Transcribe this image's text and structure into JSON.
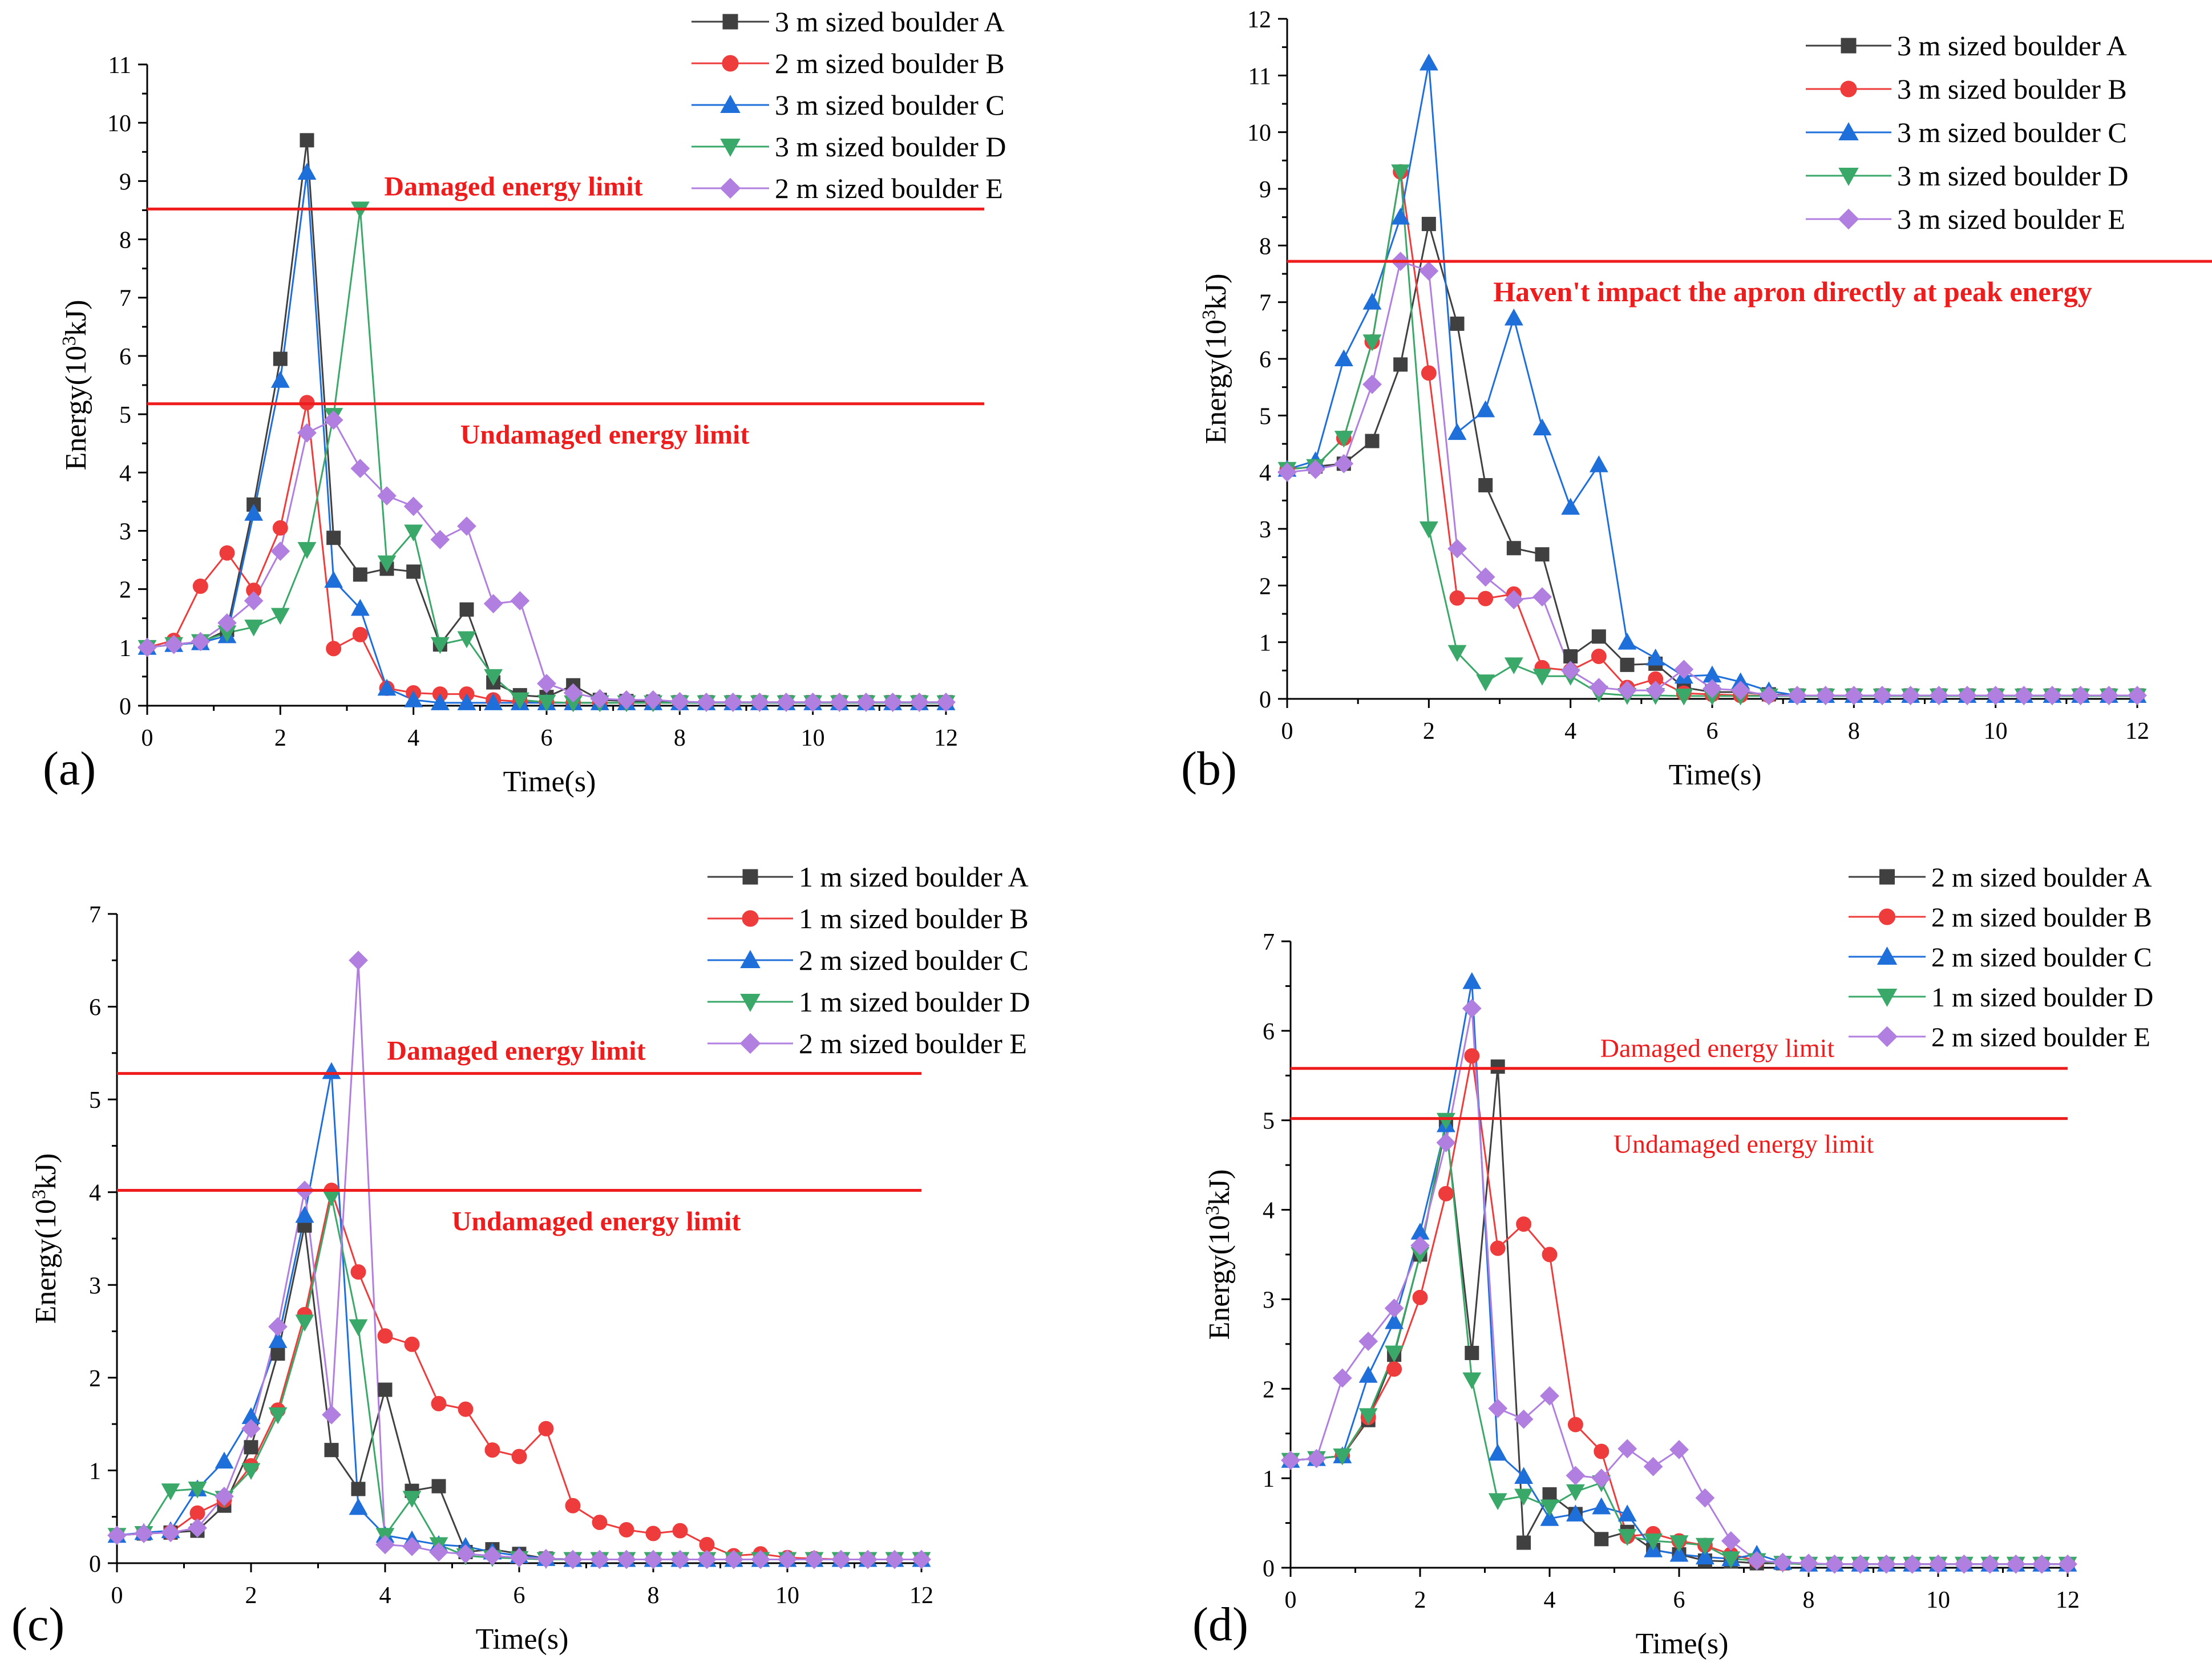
{
  "colors": {
    "A": "#404040",
    "B": "#ee3b3b",
    "C": "#1f6fdb",
    "D": "#3aa868",
    "E": "#b07fe0",
    "limit": "#ee1c1c",
    "axis": "#000000"
  },
  "chart_data": [
    {
      "id": "a",
      "type": "line",
      "panel_label": "(a)",
      "xlabel": "Time(s)",
      "ylabel_main": "Energy(10",
      "ylabel_sup": "3",
      "ylabel_end": "kJ)",
      "xlim": [
        0,
        12
      ],
      "ylim": [
        0,
        11
      ],
      "xticks": [
        0,
        2,
        4,
        6,
        8,
        10,
        12
      ],
      "yticks": [
        0,
        1,
        2,
        3,
        4,
        5,
        6,
        7,
        8,
        9,
        10,
        11
      ],
      "x": [
        0,
        0.4,
        0.8,
        1.2,
        1.6,
        2.0,
        2.4,
        2.8,
        3.2,
        3.6,
        4.0,
        4.4,
        4.8,
        5.2,
        5.6,
        6.0,
        6.4,
        6.8,
        7.2,
        7.6,
        8.0,
        8.4,
        8.8,
        9.2,
        9.6,
        10.0,
        10.4,
        10.8,
        11.2,
        11.6,
        12.0
      ],
      "series": [
        {
          "key": "A",
          "name": "3 m sized boulder A",
          "marker": "square",
          "values": [
            1.0,
            1.05,
            1.08,
            1.3,
            3.45,
            5.95,
            9.7,
            2.88,
            2.25,
            2.35,
            2.3,
            1.05,
            1.65,
            0.4,
            0.18,
            0.15,
            0.35,
            0.1,
            0.08,
            0.07,
            0.06,
            0.06,
            0.06,
            0.06,
            0.06,
            0.06,
            0.06,
            0.06,
            0.06,
            0.06,
            0.06
          ]
        },
        {
          "key": "B",
          "name": "2 m sized boulder B",
          "marker": "circle",
          "values": [
            1.0,
            1.12,
            2.05,
            2.62,
            1.98,
            3.05,
            5.2,
            0.98,
            1.22,
            0.3,
            0.22,
            0.2,
            0.2,
            0.1,
            0.07,
            0.06,
            0.05,
            0.05,
            0.05,
            0.05,
            0.05,
            0.05,
            0.05,
            0.05,
            0.05,
            0.05,
            0.05,
            0.05,
            0.05,
            0.05,
            0.05
          ]
        },
        {
          "key": "C",
          "name": "3 m sized boulder C",
          "marker": "triangle-up",
          "values": [
            1.0,
            1.05,
            1.08,
            1.2,
            3.3,
            5.58,
            9.15,
            2.15,
            1.67,
            0.3,
            0.1,
            0.05,
            0.05,
            0.05,
            0.05,
            0.05,
            0.05,
            0.05,
            0.05,
            0.05,
            0.05,
            0.05,
            0.05,
            0.05,
            0.05,
            0.05,
            0.05,
            0.05,
            0.05,
            0.05,
            0.05
          ]
        },
        {
          "key": "D",
          "name": "3 m sized boulder D",
          "marker": "triangle-down",
          "values": [
            1.0,
            1.05,
            1.1,
            1.25,
            1.35,
            1.55,
            2.68,
            4.98,
            8.52,
            2.45,
            2.98,
            1.05,
            1.15,
            0.5,
            0.1,
            0.06,
            0.05,
            0.05,
            0.05,
            0.05,
            0.05,
            0.05,
            0.05,
            0.05,
            0.05,
            0.05,
            0.05,
            0.05,
            0.05,
            0.05,
            0.05
          ]
        },
        {
          "key": "E",
          "name": "2 m sized boulder E",
          "marker": "diamond",
          "values": [
            1.0,
            1.05,
            1.1,
            1.42,
            1.8,
            2.65,
            4.68,
            4.9,
            4.07,
            3.6,
            3.42,
            2.85,
            3.08,
            1.75,
            1.8,
            0.38,
            0.22,
            0.12,
            0.1,
            0.1,
            0.07,
            0.06,
            0.06,
            0.06,
            0.06,
            0.06,
            0.06,
            0.06,
            0.06,
            0.06,
            0.06
          ]
        }
      ],
      "hlines": [
        {
          "y": 8.52,
          "label": "Damaged energy limit",
          "label_side": "above"
        },
        {
          "y": 5.18,
          "label": "Undamaged energy limit",
          "label_side": "below"
        }
      ],
      "legend": "top-right"
    },
    {
      "id": "b",
      "type": "line",
      "panel_label": "(b)",
      "xlabel": "Time(s)",
      "ylabel_main": "Energy(10",
      "ylabel_sup": "3",
      "ylabel_end": "kJ)",
      "xlim": [
        0,
        12
      ],
      "ylim": [
        0,
        12
      ],
      "xticks": [
        0,
        2,
        4,
        6,
        8,
        10,
        12
      ],
      "yticks": [
        0,
        1,
        2,
        3,
        4,
        5,
        6,
        7,
        8,
        9,
        10,
        11,
        12
      ],
      "x": [
        0,
        0.4,
        0.8,
        1.2,
        1.6,
        2.0,
        2.4,
        2.8,
        3.2,
        3.6,
        4.0,
        4.4,
        4.8,
        5.2,
        5.6,
        6.0,
        6.4,
        6.8,
        7.2,
        7.6,
        8.0,
        8.4,
        8.8,
        9.2,
        9.6,
        10.0,
        10.4,
        10.8,
        11.2,
        11.6,
        12.0
      ],
      "series": [
        {
          "key": "A",
          "name": "3 m sized boulder A",
          "marker": "square",
          "values": [
            4.05,
            4.1,
            4.15,
            4.55,
            5.9,
            8.38,
            6.62,
            3.77,
            2.66,
            2.55,
            0.75,
            1.1,
            0.6,
            0.62,
            0.2,
            0.12,
            0.12,
            0.08,
            0.06,
            0.06,
            0.06,
            0.06,
            0.06,
            0.06,
            0.06,
            0.06,
            0.06,
            0.06,
            0.06,
            0.06,
            0.06
          ]
        },
        {
          "key": "B",
          "name": "3 m sized boulder B",
          "marker": "circle",
          "values": [
            4.05,
            4.1,
            4.6,
            6.3,
            9.3,
            5.75,
            1.78,
            1.77,
            1.85,
            0.55,
            0.5,
            0.75,
            0.2,
            0.35,
            0.1,
            0.08,
            0.06,
            0.06,
            0.06,
            0.06,
            0.06,
            0.06,
            0.06,
            0.06,
            0.06,
            0.06,
            0.06,
            0.06,
            0.06,
            0.06,
            0.06
          ]
        },
        {
          "key": "C",
          "name": "3 m sized boulder C",
          "marker": "triangle-up",
          "values": [
            4.05,
            4.2,
            6.0,
            7.0,
            8.5,
            11.22,
            4.7,
            5.1,
            6.72,
            4.78,
            3.38,
            4.13,
            1.0,
            0.72,
            0.4,
            0.42,
            0.3,
            0.14,
            0.06,
            0.06,
            0.06,
            0.06,
            0.06,
            0.06,
            0.06,
            0.06,
            0.06,
            0.06,
            0.06,
            0.06,
            0.06
          ]
        },
        {
          "key": "D",
          "name": "3 m sized boulder D",
          "marker": "triangle-down",
          "values": [
            4.05,
            4.1,
            4.6,
            6.3,
            9.3,
            3.0,
            0.82,
            0.3,
            0.6,
            0.4,
            0.4,
            0.1,
            0.06,
            0.06,
            0.05,
            0.05,
            0.05,
            0.05,
            0.05,
            0.05,
            0.05,
            0.05,
            0.05,
            0.05,
            0.05,
            0.05,
            0.05,
            0.05,
            0.05,
            0.05,
            0.05
          ]
        },
        {
          "key": "E",
          "name": "3 m sized boulder E",
          "marker": "diamond",
          "values": [
            4.0,
            4.05,
            4.15,
            5.55,
            7.72,
            7.55,
            2.65,
            2.15,
            1.75,
            1.8,
            0.5,
            0.2,
            0.15,
            0.15,
            0.52,
            0.18,
            0.15,
            0.06,
            0.06,
            0.06,
            0.06,
            0.06,
            0.06,
            0.06,
            0.06,
            0.06,
            0.06,
            0.06,
            0.06,
            0.06,
            0.06
          ]
        }
      ],
      "hlines": [
        {
          "y": 7.72,
          "label": "Haven't impact the apron directly at peak energy",
          "label_side": "below",
          "extend": true
        }
      ],
      "legend": "top-right"
    },
    {
      "id": "c",
      "type": "line",
      "panel_label": "(c)",
      "xlabel": "Time(s)",
      "ylabel_main": "Energy(10",
      "ylabel_sup": "3",
      "ylabel_end": "kJ)",
      "xlim": [
        0,
        12
      ],
      "ylim": [
        0,
        7
      ],
      "xticks": [
        0,
        2,
        4,
        6,
        8,
        10,
        12
      ],
      "yticks": [
        0,
        1,
        2,
        3,
        4,
        5,
        6,
        7
      ],
      "x": [
        0,
        0.4,
        0.8,
        1.2,
        1.6,
        2.0,
        2.4,
        2.8,
        3.2,
        3.6,
        4.0,
        4.4,
        4.8,
        5.2,
        5.6,
        6.0,
        6.4,
        6.8,
        7.2,
        7.6,
        8.0,
        8.4,
        8.8,
        9.2,
        9.6,
        10.0,
        10.4,
        10.8,
        11.2,
        11.6,
        12.0
      ],
      "series": [
        {
          "key": "A",
          "name": "1 m sized boulder  A",
          "marker": "square",
          "values": [
            0.3,
            0.32,
            0.33,
            0.35,
            0.62,
            1.25,
            2.26,
            3.64,
            1.22,
            0.8,
            1.87,
            0.78,
            0.83,
            0.12,
            0.15,
            0.1,
            0.05,
            0.04,
            0.04,
            0.04,
            0.04,
            0.04,
            0.04,
            0.04,
            0.04,
            0.04,
            0.04,
            0.04,
            0.04,
            0.04,
            0.04
          ]
        },
        {
          "key": "B",
          "name": "1 m sized boulder  B",
          "marker": "circle",
          "values": [
            0.3,
            0.32,
            0.33,
            0.54,
            0.68,
            1.05,
            1.65,
            2.68,
            4.02,
            3.14,
            2.45,
            2.36,
            1.72,
            1.66,
            1.22,
            1.15,
            1.45,
            0.62,
            0.44,
            0.36,
            0.32,
            0.35,
            0.2,
            0.08,
            0.1,
            0.06,
            0.05,
            0.04,
            0.04,
            0.04,
            0.04
          ]
        },
        {
          "key": "C",
          "name": "2 m sized boulder  C",
          "marker": "triangle-up",
          "values": [
            0.3,
            0.33,
            0.35,
            0.8,
            1.1,
            1.58,
            2.4,
            3.75,
            5.3,
            0.6,
            0.3,
            0.25,
            0.2,
            0.18,
            0.12,
            0.08,
            0.05,
            0.04,
            0.04,
            0.04,
            0.04,
            0.04,
            0.04,
            0.04,
            0.04,
            0.04,
            0.04,
            0.04,
            0.04,
            0.04,
            0.04
          ]
        },
        {
          "key": "D",
          "name": "1 m sized boulder  D",
          "marker": "triangle-down",
          "values": [
            0.3,
            0.32,
            0.78,
            0.8,
            0.7,
            1.0,
            1.6,
            2.6,
            3.95,
            2.55,
            0.3,
            0.7,
            0.2,
            0.08,
            0.06,
            0.05,
            0.04,
            0.04,
            0.04,
            0.04,
            0.04,
            0.04,
            0.04,
            0.04,
            0.04,
            0.04,
            0.04,
            0.04,
            0.04,
            0.04,
            0.04
          ]
        },
        {
          "key": "E",
          "name": "2 m sized boulder  E",
          "marker": "diamond",
          "values": [
            0.3,
            0.32,
            0.33,
            0.38,
            0.72,
            1.45,
            2.55,
            4.02,
            1.6,
            6.5,
            0.2,
            0.18,
            0.12,
            0.1,
            0.08,
            0.06,
            0.05,
            0.04,
            0.04,
            0.04,
            0.04,
            0.04,
            0.04,
            0.04,
            0.04,
            0.04,
            0.04,
            0.04,
            0.04,
            0.04,
            0.04
          ]
        }
      ],
      "hlines": [
        {
          "y": 5.28,
          "label": "Damaged energy limit",
          "label_side": "above"
        },
        {
          "y": 4.02,
          "label": "Undamaged energy limit",
          "label_side": "below"
        }
      ],
      "legend": "top-right"
    },
    {
      "id": "d",
      "type": "line",
      "panel_label": "(d)",
      "xlabel": "Time(s)",
      "ylabel_main": "Energy(10",
      "ylabel_sup": "3",
      "ylabel_end": "kJ)",
      "xlim": [
        0,
        12
      ],
      "ylim": [
        0,
        7
      ],
      "xticks": [
        0,
        2,
        4,
        6,
        8,
        10,
        12
      ],
      "yticks": [
        0,
        1,
        2,
        3,
        4,
        5,
        6,
        7
      ],
      "x": [
        0,
        0.4,
        0.8,
        1.2,
        1.6,
        2.0,
        2.4,
        2.8,
        3.2,
        3.6,
        4.0,
        4.4,
        4.8,
        5.2,
        5.6,
        6.0,
        6.4,
        6.8,
        7.2,
        7.6,
        8.0,
        8.4,
        8.8,
        9.2,
        9.6,
        10.0,
        10.4,
        10.8,
        11.2,
        11.6,
        12.0
      ],
      "series": [
        {
          "key": "A",
          "name": "2 m sized boulder A",
          "marker": "square",
          "values": [
            1.2,
            1.22,
            1.25,
            1.65,
            2.38,
            3.5,
            4.95,
            2.4,
            5.6,
            0.28,
            0.82,
            0.6,
            0.32,
            0.4,
            0.2,
            0.15,
            0.08,
            0.07,
            0.05,
            0.05,
            0.04,
            0.04,
            0.04,
            0.04,
            0.04,
            0.04,
            0.04,
            0.04,
            0.04,
            0.04,
            0.04
          ]
        },
        {
          "key": "B",
          "name": "2 m sized boulder B",
          "marker": "circle",
          "values": [
            1.2,
            1.22,
            1.25,
            1.68,
            2.22,
            3.02,
            4.18,
            5.72,
            3.57,
            3.84,
            3.5,
            1.6,
            1.3,
            0.35,
            0.38,
            0.3,
            0.25,
            0.15,
            0.08,
            0.05,
            0.04,
            0.04,
            0.04,
            0.04,
            0.04,
            0.04,
            0.04,
            0.04,
            0.04,
            0.04,
            0.04
          ]
        },
        {
          "key": "C",
          "name": "2 m sized boulder C",
          "marker": "triangle-up",
          "values": [
            1.2,
            1.22,
            1.25,
            2.15,
            2.75,
            3.75,
            4.95,
            6.55,
            1.28,
            1.02,
            0.55,
            0.6,
            0.68,
            0.6,
            0.2,
            0.15,
            0.12,
            0.1,
            0.15,
            0.06,
            0.04,
            0.04,
            0.04,
            0.04,
            0.04,
            0.04,
            0.04,
            0.04,
            0.04,
            0.04,
            0.04
          ]
        },
        {
          "key": "D",
          "name": "1 m sized boulder D",
          "marker": "triangle-down",
          "values": [
            1.2,
            1.22,
            1.25,
            1.7,
            2.4,
            3.5,
            5.0,
            2.1,
            0.75,
            0.8,
            0.68,
            0.85,
            0.95,
            0.35,
            0.3,
            0.28,
            0.25,
            0.1,
            0.08,
            0.05,
            0.04,
            0.04,
            0.04,
            0.04,
            0.04,
            0.04,
            0.04,
            0.04,
            0.04,
            0.04,
            0.04
          ]
        },
        {
          "key": "E",
          "name": "2 m sized boulder E",
          "marker": "diamond",
          "values": [
            1.2,
            1.22,
            2.12,
            2.53,
            2.9,
            3.6,
            4.75,
            6.25,
            1.78,
            1.66,
            1.92,
            1.03,
            1.0,
            1.33,
            1.13,
            1.32,
            0.78,
            0.3,
            0.08,
            0.06,
            0.05,
            0.04,
            0.04,
            0.04,
            0.04,
            0.04,
            0.04,
            0.04,
            0.04,
            0.04,
            0.04
          ]
        }
      ],
      "hlines": [
        {
          "y": 5.58,
          "label": "Damaged energy limit",
          "label_side": "above",
          "mono": true
        },
        {
          "y": 5.02,
          "label": "Undamaged energy limit",
          "label_side": "below",
          "mono": true
        }
      ],
      "legend": "top-right"
    }
  ]
}
